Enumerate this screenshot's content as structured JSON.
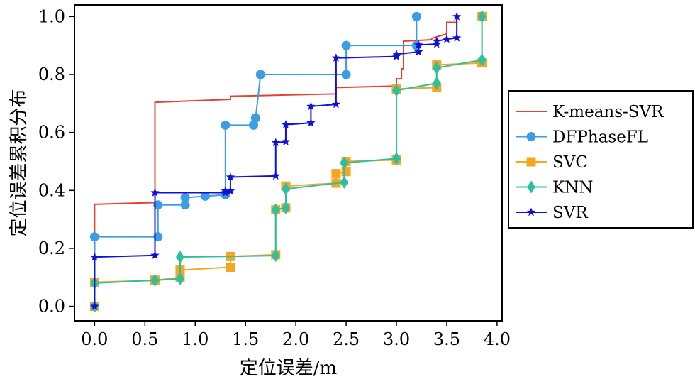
{
  "chart_data": {
    "type": "line",
    "title": "",
    "xlabel": "定位误差/m",
    "ylabel": "定位误差累积分布",
    "xlim": [
      -0.2,
      4.05
    ],
    "ylim": [
      -0.05,
      1.04
    ],
    "xticks": [
      "0.0",
      "0.5",
      "1.0",
      "1.5",
      "2.0",
      "2.5",
      "3.0",
      "3.5",
      "4.0"
    ],
    "yticks": [
      "0.0",
      "0.2",
      "0.4",
      "0.6",
      "0.8",
      "1.0"
    ],
    "legend_position": "right",
    "grid": false,
    "series": [
      {
        "name": "K-means-SVR",
        "color": "#e8402e",
        "marker": "none",
        "x": [
          0.0,
          0.0,
          0.6,
          0.6,
          1.35,
          1.35,
          2.4,
          2.4,
          3.0,
          3.0,
          3.05,
          3.05,
          3.07,
          3.07,
          3.35,
          3.35,
          3.5,
          3.5,
          3.6,
          3.6
        ],
        "y": [
          0.0,
          0.352,
          0.358,
          0.704,
          0.714,
          0.725,
          0.733,
          0.755,
          0.76,
          0.785,
          0.785,
          0.82,
          0.82,
          0.915,
          0.92,
          0.925,
          0.94,
          0.98,
          0.98,
          1.0
        ]
      },
      {
        "name": "DFPhaseFL",
        "color": "#3b9de3",
        "marker": "circle",
        "x": [
          0.0,
          0.0,
          0.63,
          0.63,
          0.9,
          0.9,
          1.1,
          1.3,
          1.3,
          1.58,
          1.6,
          1.6,
          1.65,
          1.65,
          2.5,
          2.5,
          3.2,
          3.2
        ],
        "y": [
          0.0,
          0.24,
          0.24,
          0.35,
          0.35,
          0.375,
          0.38,
          0.385,
          0.625,
          0.625,
          0.65,
          0.65,
          0.8,
          0.8,
          0.8,
          0.9,
          0.9,
          1.0
        ]
      },
      {
        "name": "SVC",
        "color": "#f5a623",
        "marker": "square",
        "x": [
          0.0,
          0.0,
          0.6,
          0.6,
          0.85,
          0.85,
          1.35,
          1.35,
          1.8,
          1.8,
          1.9,
          1.9,
          2.4,
          2.4,
          2.5,
          2.5,
          3.0,
          3.0,
          3.4,
          3.4,
          3.85,
          3.85
        ],
        "y": [
          0.0,
          0.083,
          0.09,
          0.09,
          0.1,
          0.125,
          0.135,
          0.172,
          0.178,
          0.333,
          0.34,
          0.415,
          0.425,
          0.458,
          0.465,
          0.5,
          0.505,
          0.75,
          0.755,
          0.833,
          0.84,
          1.0
        ]
      },
      {
        "name": "KNN",
        "color": "#2cbfa0",
        "marker": "diamond",
        "x": [
          0.0,
          0.0,
          0.6,
          0.6,
          0.85,
          0.85,
          1.8,
          1.8,
          1.9,
          1.9,
          2.48,
          2.48,
          3.0,
          3.0,
          3.4,
          3.4,
          3.85,
          3.85
        ],
        "y": [
          0.0,
          0.08,
          0.09,
          0.09,
          0.095,
          0.17,
          0.175,
          0.333,
          0.34,
          0.405,
          0.428,
          0.495,
          0.51,
          0.745,
          0.77,
          0.823,
          0.85,
          1.0
        ]
      },
      {
        "name": "SVR",
        "color": "#1010d8",
        "marker": "star",
        "x": [
          0.0,
          0.0,
          0.6,
          0.6,
          1.3,
          1.3,
          1.35,
          1.35,
          1.8,
          1.8,
          1.9,
          1.9,
          2.15,
          2.15,
          2.4,
          2.4,
          3.0,
          3.0,
          3.22,
          3.22,
          3.4,
          3.4,
          3.5,
          3.6,
          3.6
        ],
        "y": [
          0.0,
          0.17,
          0.176,
          0.392,
          0.392,
          0.398,
          0.398,
          0.446,
          0.45,
          0.565,
          0.568,
          0.627,
          0.633,
          0.69,
          0.697,
          0.857,
          0.862,
          0.87,
          0.878,
          0.902,
          0.905,
          0.915,
          0.922,
          0.926,
          1.0
        ]
      }
    ]
  }
}
